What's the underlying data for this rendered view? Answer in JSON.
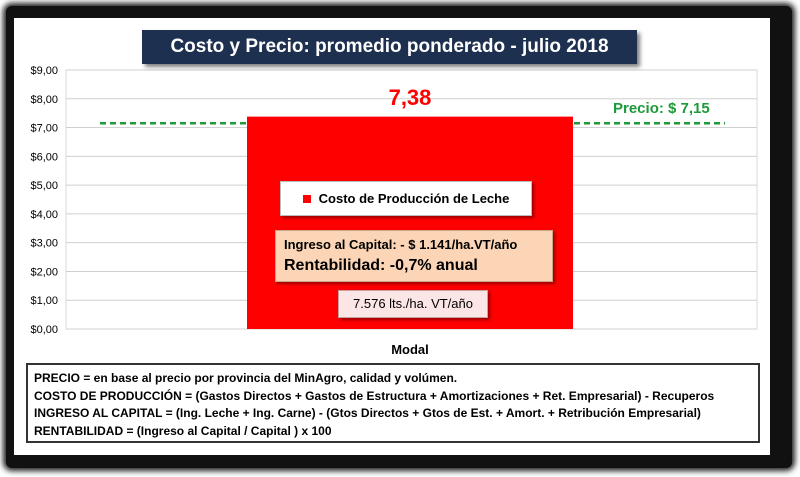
{
  "title": "Costo  y Precio: promedio ponderado - julio 2018",
  "chart_data": {
    "type": "bar",
    "categories": [
      "Modal"
    ],
    "series": [
      {
        "name": "Costo de Producción de Leche",
        "values": [
          7.38
        ]
      }
    ],
    "data_labels": [
      "7,38"
    ],
    "reference_line": {
      "label": "Precio: $ 7,15",
      "value": 7.15
    },
    "ylim": [
      0,
      9
    ],
    "yticks": [
      0,
      1,
      2,
      3,
      4,
      5,
      6,
      7,
      8,
      9
    ],
    "ytick_labels": [
      "$0,00",
      "$1,00",
      "$2,00",
      "$3,00",
      "$4,00",
      "$5,00",
      "$6,00",
      "$7,00",
      "$8,00",
      "$9,00"
    ],
    "xlabel": "Modal",
    "grid": true,
    "legend_placement": "inside-bar"
  },
  "legend": {
    "label": "Costo de Producción de Leche"
  },
  "capital": {
    "ingreso": "Ingreso al Capital: - $ 1.141/ha.VT/año",
    "rentabilidad": "Rentabilidad: -0,7% anual"
  },
  "productividad": "7.576 lts./ha. VT/año",
  "notes": [
    "PRECIO = en base al precio por provincia del MinAgro, calidad y volúmen.",
    "COSTO DE PRODUCCIÓN = (Gastos Directos + Gastos de Estructura + Amortizaciones + Ret. Empresarial) - Recuperos",
    "INGRESO AL CAPITAL = (Ing. Leche + Ing. Carne) - (Gtos Directos + Gtos de Est. + Amort. + Retribución Empresarial)",
    "RENTABILIDAD = (Ingreso al Capital / Capital ) x 100"
  ],
  "colors": {
    "bar": "#ff0000",
    "data_label": "#ff0000",
    "reference_line": "#1e9a3a",
    "grid": "#d0d0d0",
    "title_bg": "#1e3050"
  }
}
